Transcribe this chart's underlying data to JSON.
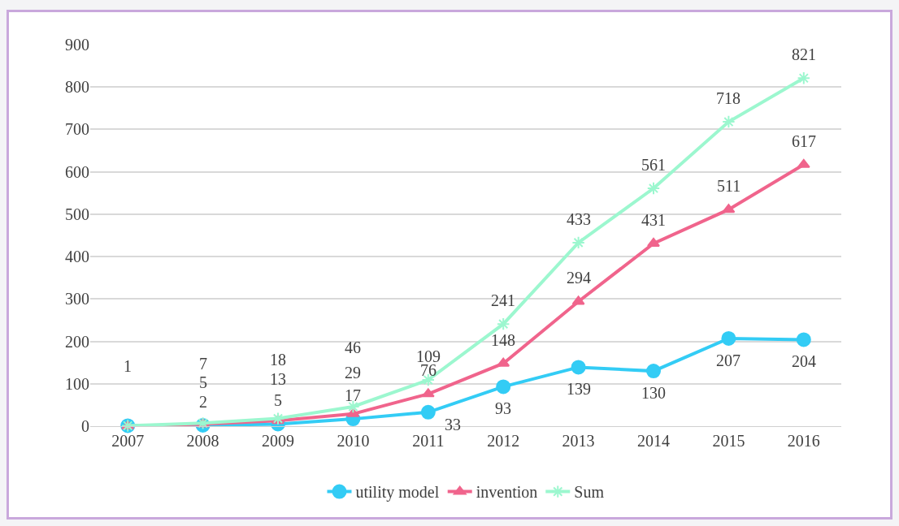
{
  "chart_data": {
    "type": "line",
    "categories": [
      "2007",
      "2008",
      "2009",
      "2010",
      "2011",
      "2012",
      "2013",
      "2014",
      "2015",
      "2016"
    ],
    "ylim": [
      0,
      900
    ],
    "yticks": [
      0,
      100,
      200,
      300,
      400,
      500,
      600,
      700,
      800,
      900
    ],
    "grid": "y",
    "legend": "bottom",
    "series": [
      {
        "name": "utility model",
        "color": "#33ccf5",
        "marker": "circle",
        "values": [
          1,
          2,
          5,
          17,
          33,
          93,
          139,
          130,
          207,
          204
        ],
        "value_labels": [
          null,
          "2",
          "5",
          "17",
          "33",
          "93",
          "139",
          "130",
          "207",
          "204"
        ]
      },
      {
        "name": "invention",
        "color": "#f0648c",
        "marker": "triangle",
        "values": [
          0,
          5,
          13,
          29,
          76,
          148,
          294,
          431,
          511,
          617
        ],
        "value_labels": [
          null,
          "5",
          "13",
          "29",
          "76",
          "148",
          "294",
          "431",
          "511",
          "617"
        ]
      },
      {
        "name": "Sum",
        "color": "#9cf7cf",
        "marker": "cross",
        "values": [
          1,
          7,
          18,
          46,
          109,
          241,
          433,
          561,
          718,
          821
        ],
        "value_labels": [
          "1",
          "7",
          "18",
          "46",
          "109",
          "241",
          "433",
          "561",
          "718",
          "821"
        ]
      }
    ]
  }
}
